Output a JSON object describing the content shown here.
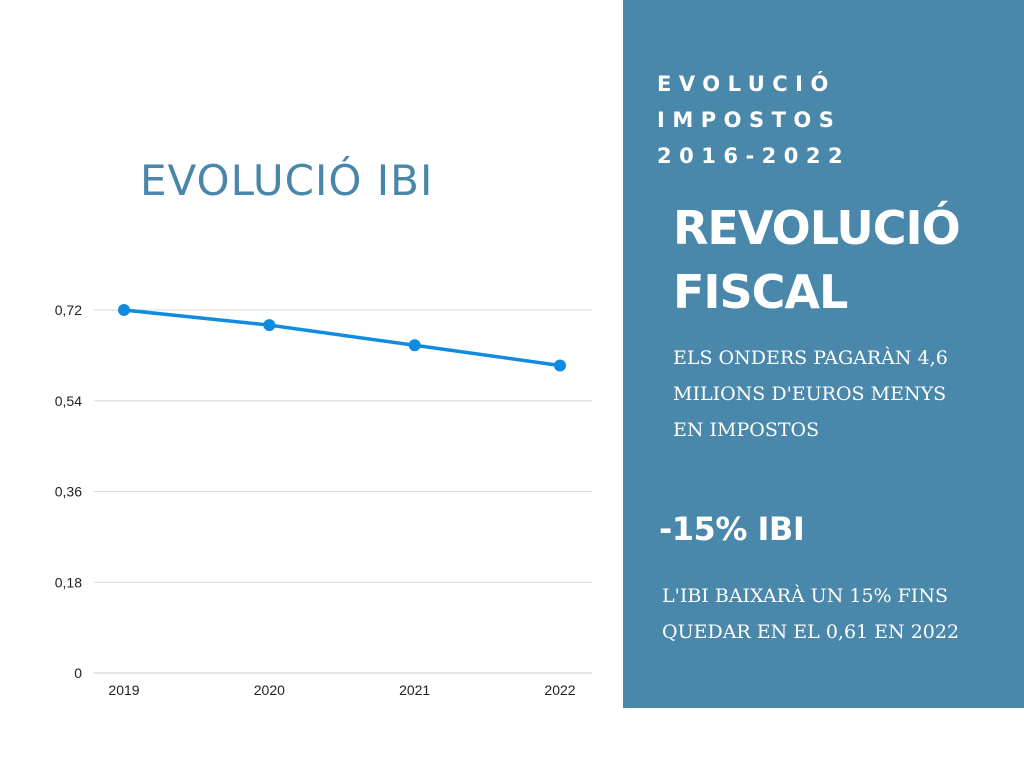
{
  "chart_data": {
    "type": "line",
    "title": "EVOLUCIÓ IBI",
    "categories": [
      "2019",
      "2020",
      "2021",
      "2022"
    ],
    "series": [
      {
        "name": "IBI",
        "values": [
          0.72,
          0.69,
          0.65,
          0.61
        ],
        "color": "#0f8be0"
      }
    ],
    "yticks": [
      0,
      0.18,
      0.36,
      0.54,
      0.72
    ],
    "ytick_labels": [
      "0",
      "0,18",
      "0,36",
      "0,54",
      "0,72"
    ],
    "ylim": [
      0,
      0.72
    ],
    "grid": true,
    "xlabel": "",
    "ylabel": ""
  },
  "panel": {
    "kicker_lines": [
      "EVOLUCIÓ",
      "IMPOSTOS",
      "2016-2022"
    ],
    "headline_lines": [
      "REVOLUCIÓ",
      "FISCAL"
    ],
    "body_lines": [
      "ELS ONDERS PAGARÀN 4,6",
      "MILIONS D'EUROS MENYS",
      "EN IMPOSTOS"
    ],
    "stat": "-15% IBI",
    "stat_lines": [
      "L'IBI BAIXARÀ UN 15% FINS",
      "QUEDAR EN EL 0,61 EN 2022"
    ]
  },
  "colors": {
    "panel_bg": "#4a88ab",
    "title": "#4a86a9",
    "line": "#0f8be0",
    "grid": "#d9d9d9"
  }
}
